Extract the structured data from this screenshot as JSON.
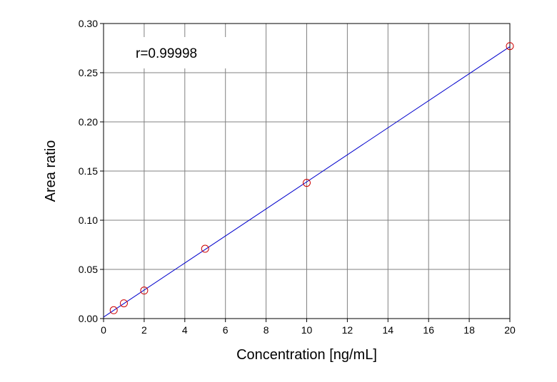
{
  "chart_data": {
    "type": "scatter",
    "title": "",
    "xlabel": "Concentration [ng/mL]",
    "ylabel": "Area ratio",
    "xlim": [
      0,
      20
    ],
    "ylim": [
      0,
      0.3
    ],
    "x_ticks": [
      "0",
      "2",
      "4",
      "6",
      "8",
      "10",
      "12",
      "14",
      "16",
      "18",
      "20"
    ],
    "y_ticks": [
      "0.00",
      "0.05",
      "0.10",
      "0.15",
      "0.20",
      "0.25",
      "0.30"
    ],
    "grid": true,
    "annotation": "r=0.99998",
    "series": [
      {
        "type": "scatter",
        "marker": "open-circle",
        "color": "#cc0000",
        "points": [
          {
            "x": 0.5,
            "y": 0.0085
          },
          {
            "x": 1,
            "y": 0.0155
          },
          {
            "x": 2,
            "y": 0.0285
          },
          {
            "x": 5,
            "y": 0.071
          },
          {
            "x": 10,
            "y": 0.138
          },
          {
            "x": 20,
            "y": 0.277
          }
        ]
      },
      {
        "type": "line",
        "style": "regression-fit",
        "color": "#0000cc",
        "points": [
          {
            "x": 0,
            "y": 0.0015
          },
          {
            "x": 20,
            "y": 0.2765
          }
        ]
      }
    ]
  }
}
